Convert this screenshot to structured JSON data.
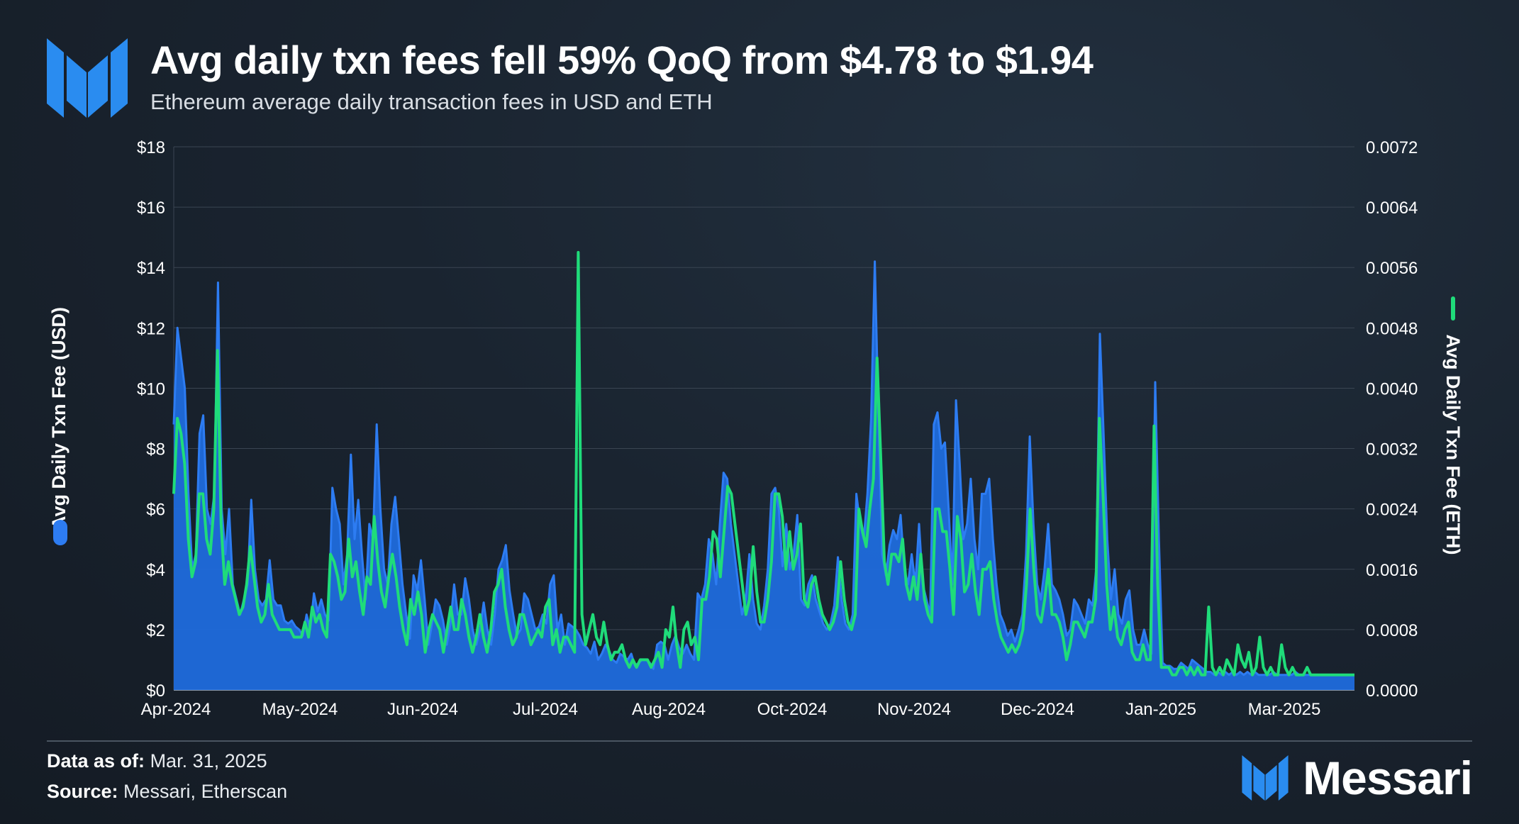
{
  "header": {
    "title": "Avg daily txn fees fell 59% QoQ from $4.78 to $1.94",
    "subtitle": "Ethereum average daily transaction fees in USD and ETH"
  },
  "footer": {
    "data_as_of_label": "Data as of:",
    "data_as_of_value": "Mar. 31, 2025",
    "source_label": "Source:",
    "source_value": "Messari, Etherscan",
    "brand": "Messari"
  },
  "colors": {
    "usd": "#1f6bdc",
    "usd_line": "#2d7cf2",
    "eth": "#1fdc7a",
    "grid": "#3a4552",
    "text": "#ffffff"
  },
  "chart_data": {
    "type": "area",
    "x_labels": [
      "Apr-2024",
      "May-2024",
      "Jun-2024",
      "Jul-2024",
      "Aug-2024",
      "Oct-2024",
      "Nov-2024",
      "Dec-2024",
      "Jan-2025",
      "Mar-2025"
    ],
    "y_left": {
      "label": "Avg Daily Txn Fee (USD)",
      "ticks": [
        "$0",
        "$2",
        "$4",
        "$6",
        "$8",
        "$10",
        "$12",
        "$14",
        "$16",
        "$18"
      ],
      "range": [
        0,
        18
      ]
    },
    "y_right": {
      "label": "Avg Daily Txn Fee (ETH)",
      "ticks": [
        "0.0000",
        "0.0008",
        "0.0016",
        "0.0024",
        "0.0032",
        "0.0040",
        "0.0048",
        "0.0056",
        "0.0064",
        "0.0072"
      ],
      "range": [
        0,
        0.0072
      ]
    },
    "grid": true,
    "legend_placement": "axis labels",
    "series": [
      {
        "name": "Avg Daily Txn Fee (USD)",
        "type": "area",
        "axis": "left",
        "values": [
          8.8,
          12.0,
          11.0,
          10.0,
          6.5,
          4.0,
          4.5,
          8.5,
          9.1,
          6.0,
          5.5,
          6.5,
          13.5,
          6.0,
          4.5,
          6.0,
          3.5,
          3.0,
          2.5,
          3.0,
          3.5,
          6.3,
          4.0,
          3.0,
          2.8,
          3.0,
          4.3,
          3.0,
          2.8,
          2.8,
          2.3,
          2.2,
          2.3,
          2.1,
          2.0,
          1.8,
          2.5,
          2.0,
          3.2,
          2.6,
          3.0,
          2.5,
          2.3,
          6.7,
          6.0,
          5.5,
          3.5,
          4.5,
          7.8,
          5.0,
          6.3,
          4.5,
          3.0,
          5.5,
          5.0,
          8.8,
          6.0,
          4.0,
          3.5,
          5.5,
          6.4,
          5.0,
          3.5,
          2.5,
          1.7,
          3.8,
          3.3,
          4.3,
          3.0,
          1.5,
          2.2,
          3.0,
          2.8,
          2.3,
          1.5,
          2.2,
          3.5,
          2.5,
          2.5,
          3.7,
          3.0,
          2.0,
          1.5,
          2.0,
          2.9,
          2.0,
          1.5,
          2.5,
          4.0,
          4.3,
          4.8,
          3.3,
          2.5,
          1.8,
          2.0,
          3.2,
          3.0,
          2.5,
          2.0,
          2.1,
          2.5,
          2.2,
          3.5,
          3.8,
          2.0,
          2.5,
          1.5,
          2.2,
          2.1,
          2.0,
          1.8,
          1.5,
          1.4,
          1.2,
          1.6,
          1.0,
          1.2,
          1.5,
          1.3,
          1.0,
          0.9,
          1.2,
          1.1,
          1.0,
          1.2,
          0.8,
          0.9,
          1.0,
          1.0,
          0.9,
          0.7,
          1.5,
          1.6,
          1.5,
          1.0,
          1.5,
          1.8,
          1.4,
          1.2,
          1.5,
          1.2,
          1.0,
          3.2,
          3.0,
          3.5,
          5.0,
          4.5,
          3.5,
          5.5,
          7.2,
          7.0,
          5.5,
          4.5,
          3.5,
          2.5,
          3.0,
          4.5,
          3.0,
          2.2,
          2.0,
          2.8,
          4.0,
          6.5,
          6.7,
          6.0,
          4.1,
          5.5,
          4.0,
          4.5,
          5.8,
          3.0,
          2.8,
          3.5,
          3.8,
          3.0,
          2.6,
          2.2,
          2.0,
          2.2,
          2.8,
          4.4,
          3.0,
          2.2,
          2.0,
          2.5,
          6.5,
          5.5,
          5.0,
          6.5,
          9.0,
          14.2,
          9.0,
          4.5,
          3.8,
          4.8,
          5.3,
          5.0,
          5.8,
          4.0,
          3.5,
          4.5,
          3.5,
          5.5,
          3.5,
          3.0,
          2.5,
          8.8,
          9.2,
          8.0,
          8.2,
          6.0,
          3.5,
          9.6,
          7.5,
          5.0,
          5.5,
          7.0,
          5.0,
          4.0,
          6.5,
          6.5,
          7.0,
          5.0,
          3.5,
          2.5,
          2.2,
          1.8,
          2.0,
          1.6,
          2.0,
          2.5,
          4.5,
          8.4,
          5.5,
          3.5,
          3.0,
          4.0,
          5.5,
          3.5,
          3.3,
          3.0,
          2.5,
          1.8,
          2.0,
          3.0,
          2.8,
          2.5,
          2.2,
          3.0,
          2.8,
          4.0,
          11.8,
          8.5,
          5.0,
          3.0,
          4.0,
          2.5,
          2.2,
          3.0,
          3.3,
          2.0,
          1.5,
          1.5,
          2.0,
          1.5,
          1.2,
          10.2,
          5.0,
          0.9,
          0.8,
          0.8,
          0.7,
          0.7,
          0.9,
          0.8,
          0.7,
          1.0,
          0.9,
          0.8,
          0.7,
          0.6,
          0.6,
          0.5,
          0.6,
          0.5,
          0.6,
          0.5,
          0.6,
          0.5,
          0.6,
          0.5,
          0.6,
          0.5,
          0.6,
          0.5,
          0.5,
          0.5,
          0.5,
          0.6,
          0.5,
          0.5,
          0.5,
          0.5,
          0.5,
          0.6,
          0.5,
          0.5,
          0.5,
          0.5,
          0.5,
          0.5,
          0.5,
          0.5,
          0.5,
          0.5,
          0.5,
          0.5,
          0.5,
          0.5,
          0.5,
          0.5
        ]
      },
      {
        "name": "Avg Daily Txn Fee (ETH)",
        "type": "line",
        "axis": "right",
        "values": [
          0.0026,
          0.0036,
          0.0034,
          0.003,
          0.002,
          0.0015,
          0.0017,
          0.0026,
          0.0026,
          0.002,
          0.0018,
          0.0024,
          0.0045,
          0.0022,
          0.0014,
          0.0017,
          0.0014,
          0.0012,
          0.001,
          0.0011,
          0.0014,
          0.0019,
          0.0015,
          0.0011,
          0.0009,
          0.001,
          0.0014,
          0.001,
          0.0009,
          0.0008,
          0.0008,
          0.0008,
          0.0008,
          0.0007,
          0.0007,
          0.0007,
          0.0009,
          0.0007,
          0.0011,
          0.0009,
          0.001,
          0.0008,
          0.0007,
          0.0018,
          0.0017,
          0.0015,
          0.0012,
          0.0013,
          0.002,
          0.0015,
          0.0017,
          0.0013,
          0.001,
          0.0015,
          0.0014,
          0.0023,
          0.0017,
          0.0013,
          0.0011,
          0.0015,
          0.0018,
          0.0015,
          0.0011,
          0.0008,
          0.0006,
          0.0012,
          0.001,
          0.0013,
          0.001,
          0.0005,
          0.0008,
          0.001,
          0.0009,
          0.0008,
          0.0005,
          0.0008,
          0.0011,
          0.0008,
          0.0008,
          0.0012,
          0.001,
          0.0007,
          0.0005,
          0.0007,
          0.001,
          0.0007,
          0.0005,
          0.0008,
          0.0013,
          0.0014,
          0.0016,
          0.0011,
          0.0008,
          0.0006,
          0.0007,
          0.001,
          0.001,
          0.0008,
          0.0006,
          0.0007,
          0.0008,
          0.0007,
          0.0011,
          0.0012,
          0.0006,
          0.0008,
          0.0005,
          0.0007,
          0.0007,
          0.0006,
          0.0005,
          0.0058,
          0.001,
          0.0006,
          0.0008,
          0.001,
          0.0007,
          0.0006,
          0.0009,
          0.0006,
          0.0004,
          0.0005,
          0.0005,
          0.0006,
          0.0004,
          0.0003,
          0.0004,
          0.0003,
          0.0004,
          0.0004,
          0.0004,
          0.0003,
          0.0004,
          0.0005,
          0.0003,
          0.0008,
          0.0007,
          0.0011,
          0.0006,
          0.0003,
          0.0008,
          0.0009,
          0.0006,
          0.0007,
          0.0004,
          0.0012,
          0.0012,
          0.0015,
          0.0021,
          0.002,
          0.0015,
          0.0021,
          0.0027,
          0.0026,
          0.0022,
          0.0018,
          0.0014,
          0.001,
          0.0012,
          0.0019,
          0.0013,
          0.0009,
          0.0009,
          0.0012,
          0.0017,
          0.0026,
          0.0026,
          0.0023,
          0.0016,
          0.0021,
          0.0016,
          0.0018,
          0.0022,
          0.0012,
          0.0011,
          0.0014,
          0.0015,
          0.0012,
          0.001,
          0.0009,
          0.0008,
          0.0009,
          0.0011,
          0.0017,
          0.0012,
          0.0009,
          0.0008,
          0.001,
          0.0024,
          0.0021,
          0.0019,
          0.0024,
          0.0028,
          0.0044,
          0.0031,
          0.0017,
          0.0014,
          0.0018,
          0.0018,
          0.0017,
          0.002,
          0.0014,
          0.0012,
          0.0015,
          0.0012,
          0.0018,
          0.0012,
          0.001,
          0.0009,
          0.0024,
          0.0024,
          0.0021,
          0.0021,
          0.0016,
          0.001,
          0.0023,
          0.002,
          0.0013,
          0.0014,
          0.0018,
          0.0013,
          0.001,
          0.0016,
          0.0016,
          0.0017,
          0.0012,
          0.0009,
          0.0007,
          0.0006,
          0.0005,
          0.0006,
          0.0005,
          0.0006,
          0.0008,
          0.0014,
          0.0024,
          0.0016,
          0.001,
          0.0009,
          0.0012,
          0.0016,
          0.001,
          0.001,
          0.0009,
          0.0007,
          0.0004,
          0.0006,
          0.0009,
          0.0009,
          0.0008,
          0.0007,
          0.0009,
          0.0009,
          0.0012,
          0.0036,
          0.0026,
          0.0014,
          0.0008,
          0.0011,
          0.0007,
          0.0006,
          0.0008,
          0.0009,
          0.0005,
          0.0004,
          0.0004,
          0.0006,
          0.0004,
          0.0004,
          0.0035,
          0.0014,
          0.0003,
          0.0003,
          0.0003,
          0.0002,
          0.0002,
          0.0003,
          0.0003,
          0.0002,
          0.0003,
          0.0002,
          0.0003,
          0.0002,
          0.0002,
          0.0011,
          0.0003,
          0.0002,
          0.0003,
          0.0002,
          0.0004,
          0.0003,
          0.0002,
          0.0006,
          0.0004,
          0.0003,
          0.0005,
          0.0002,
          0.0003,
          0.0007,
          0.0003,
          0.0002,
          0.0003,
          0.0002,
          0.0002,
          0.0006,
          0.0003,
          0.0002,
          0.0003,
          0.0002,
          0.0002,
          0.0002,
          0.0003,
          0.0002,
          0.0002,
          0.0002,
          0.0002,
          0.0002,
          0.0002,
          0.0002,
          0.0002,
          0.0002,
          0.0002,
          0.0002,
          0.0002,
          0.0002
        ]
      }
    ]
  }
}
